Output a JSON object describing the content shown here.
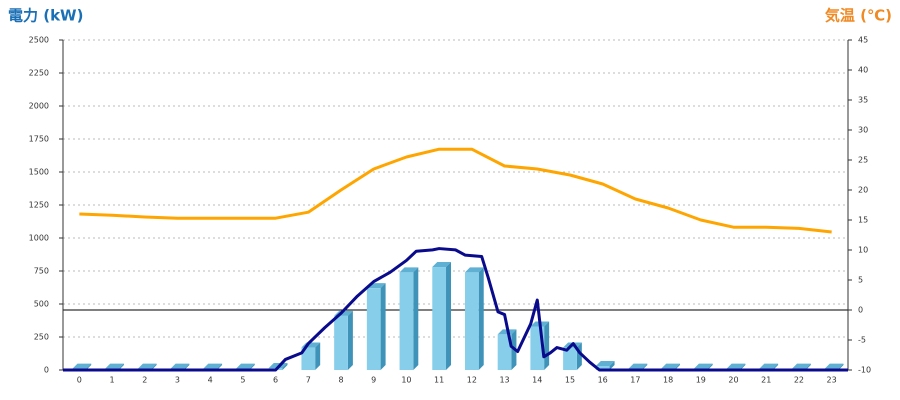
{
  "chart_data": {
    "type": "bar",
    "title_left": "電力 (kW)",
    "title_right": "気温 (℃)",
    "title_left_color": "#1a6fb5",
    "title_right_color": "#f08a24",
    "categories": [
      "0",
      "1",
      "2",
      "3",
      "4",
      "5",
      "6",
      "7",
      "8",
      "9",
      "10",
      "11",
      "12",
      "13",
      "14",
      "15",
      "16",
      "17",
      "18",
      "19",
      "20",
      "21",
      "22",
      "23"
    ],
    "ylim": [
      0,
      2500
    ],
    "yticks": [
      0,
      250,
      500,
      750,
      1000,
      1250,
      1500,
      1750,
      2000,
      2250,
      2500
    ],
    "y2lim": [
      -10,
      45
    ],
    "y2ticks": [
      -10,
      -5,
      0,
      5,
      10,
      15,
      20,
      25,
      30,
      35,
      40,
      45
    ],
    "grid": true,
    "y2_zero_line": true,
    "series": [
      {
        "type": "bar",
        "color": "#87ceeb",
        "values": [
          10,
          10,
          10,
          10,
          10,
          10,
          15,
          170,
          410,
          620,
          740,
          780,
          740,
          270,
          330,
          170,
          30,
          10,
          10,
          10,
          10,
          10,
          10,
          10
        ]
      },
      {
        "type": "line",
        "color": "#0a0a8c",
        "x": [
          -0.5,
          6,
          6.3,
          6.8,
          7,
          7.5,
          8,
          8.5,
          9,
          9.5,
          10,
          10.3,
          10.8,
          11,
          11.5,
          11.8,
          12.3,
          12.5,
          12.8,
          13,
          13.2,
          13.4,
          13.8,
          14,
          14.2,
          14.4,
          14.6,
          14.9,
          15.1,
          15.3,
          15.6,
          15.9,
          23.5
        ],
        "values": [
          0,
          0,
          80,
          130,
          200,
          320,
          430,
          560,
          670,
          740,
          830,
          900,
          910,
          920,
          910,
          870,
          860,
          700,
          440,
          420,
          180,
          140,
          350,
          530,
          100,
          130,
          170,
          150,
          200,
          130,
          60,
          0,
          0
        ]
      },
      {
        "type": "line",
        "axis": "y2",
        "color": "#ffa500",
        "values": [
          16,
          15.8,
          15.5,
          15.3,
          15.3,
          15.3,
          15.3,
          16.3,
          20,
          23.5,
          25.5,
          26.8,
          26.8,
          24,
          23.5,
          22.5,
          21,
          18.5,
          17,
          15,
          13.8,
          13.8,
          13.6,
          13
        ]
      }
    ]
  }
}
